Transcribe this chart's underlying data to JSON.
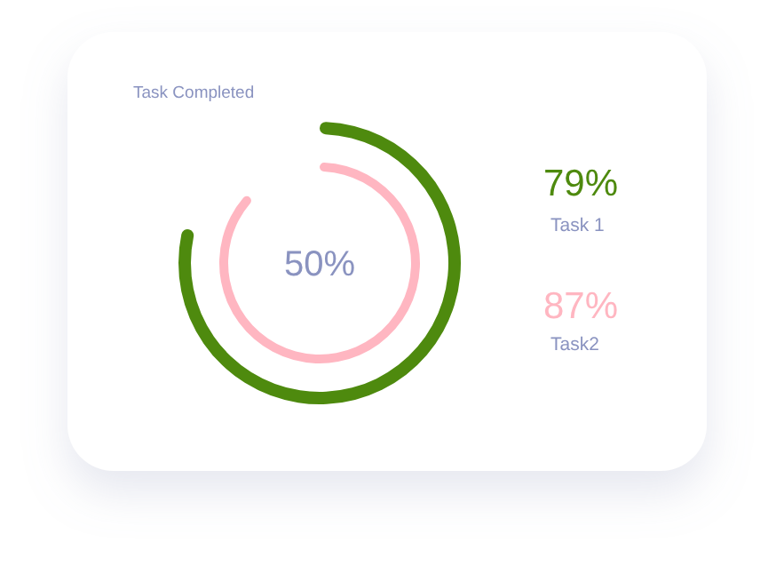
{
  "chart_data": {
    "type": "other",
    "title": "Task Completed",
    "categories": [
      "Task 1",
      "Task2"
    ],
    "values": [
      79,
      87
    ],
    "value_labels": [
      "79%",
      "87%"
    ],
    "colors": [
      "#4e8a0e",
      "#ffb6c1"
    ],
    "annotations": [
      "50%"
    ]
  }
}
